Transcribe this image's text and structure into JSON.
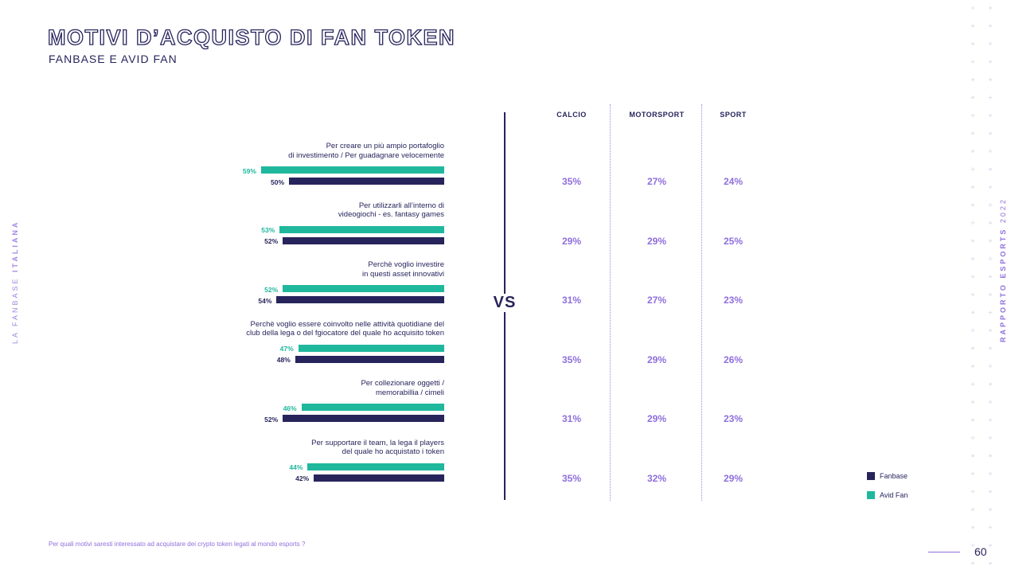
{
  "header": {
    "title": "MOTIVI D’ACQUISTO DI FAN TOKEN",
    "subtitle": "FANBASE E AVID FAN"
  },
  "side": {
    "left_prefix": "LA FANBASE ",
    "left_bold": "ITALIANA",
    "right_bold": "RAPPORTO ESPORTS",
    "right_year": " 2022"
  },
  "footer": {
    "question": "Per quali motivi saresti interessato ad acquistare dei crypto token legati al mondo esports ?",
    "page_number": "60"
  },
  "vs_label": "VS",
  "colors": {
    "avid": "#1fb89d",
    "fanbase": "#27245c",
    "accent": "#8f6fdc"
  },
  "chart_data": {
    "type": "bar",
    "orientation": "horizontal",
    "categories": [
      "Per creare un più ampio portafoglio\ndi investimento / Per guadagnare velocemente",
      "Per utilizzarli all’interno di\nvideogiochi - es. fantasy games",
      "Perchè voglio investire\nin questi asset innovativi",
      "Perchè voglio essere coinvolto nelle attività quotidiane del\nclub della lega o del fgiocatore del quale ho acquisito token",
      "Per collezionare oggetti /\nmemorabillia / cimeli",
      "Per supportare il team, la lega il players\ndel quale ho acquistato i token"
    ],
    "series": [
      {
        "name": "Avid Fan",
        "values": [
          59,
          53,
          52,
          47,
          46,
          44
        ],
        "labels": [
          "59%",
          "53%",
          "52%",
          "47%",
          "46%",
          "44%"
        ]
      },
      {
        "name": "Fanbase",
        "values": [
          50,
          52,
          54,
          48,
          52,
          42
        ],
        "labels": [
          "50%",
          "52%",
          "54%",
          "48%",
          "52%",
          "42%"
        ]
      }
    ],
    "xlim": [
      0,
      100
    ],
    "legend": [
      {
        "name": "Fanbase",
        "color": "#27245c"
      },
      {
        "name": "Avid Fan",
        "color": "#1fb89d"
      }
    ],
    "legend_position": "bottom-right",
    "table": {
      "columns": [
        "CALCIO",
        "MOTORSPORT",
        "SPORT"
      ],
      "rows": [
        [
          "35%",
          "27%",
          "24%"
        ],
        [
          "29%",
          "29%",
          "25%"
        ],
        [
          "31%",
          "27%",
          "23%"
        ],
        [
          "35%",
          "29%",
          "26%"
        ],
        [
          "31%",
          "29%",
          "23%"
        ],
        [
          "35%",
          "32%",
          "29%"
        ]
      ]
    }
  }
}
